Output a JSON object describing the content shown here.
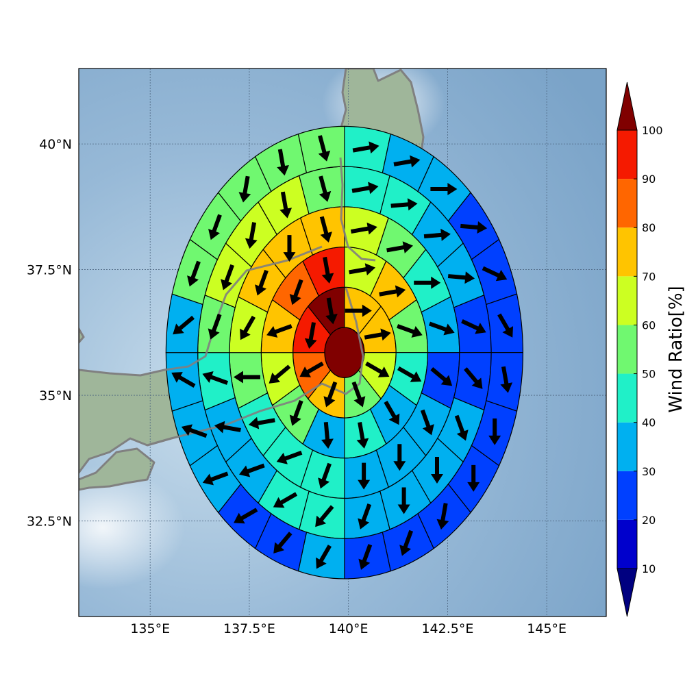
{
  "chart_data": {
    "type": "polar_sector_map",
    "title": "",
    "xlabel": "",
    "ylabel": "",
    "map": {
      "lon_range": [
        133.2,
        146.5
      ],
      "lat_range": [
        30.6,
        41.5
      ],
      "x_ticks": [
        135,
        137.5,
        140,
        142.5,
        145
      ],
      "x_tick_labels": [
        "135°E",
        "137.5°E",
        "140°E",
        "142.5°E",
        "145°E"
      ],
      "y_ticks": [
        32.5,
        35,
        37.5,
        40
      ],
      "y_tick_labels": [
        "32.5°N",
        "35°N",
        "37.5°N",
        "40°N"
      ],
      "grid": true,
      "ocean_color": "#8fb4d4",
      "coastline_color": "#808080",
      "land_color": "#9fb69a"
    },
    "center": {
      "lon": 139.9,
      "lat": 35.85
    },
    "rings": [
      {
        "ring": 0,
        "inner_deg": 0.0,
        "outer_deg": 0.5,
        "sectors": 1
      },
      {
        "ring": 1,
        "inner_deg": 0.5,
        "outer_deg": 1.3,
        "sectors": 8
      },
      {
        "ring": 2,
        "inner_deg": 1.3,
        "outer_deg": 2.1,
        "sectors": 12
      },
      {
        "ring": 3,
        "inner_deg": 2.1,
        "outer_deg": 2.9,
        "sectors": 16
      },
      {
        "ring": 4,
        "inner_deg": 2.9,
        "outer_deg": 3.7,
        "sectors": 20
      },
      {
        "ring": 5,
        "inner_deg": 3.7,
        "outer_deg": 4.5,
        "sectors": 24
      }
    ],
    "sector_order": "clockwise from north",
    "values": [
      [
        100
      ],
      [
        75,
        75,
        65,
        55,
        75,
        85,
        95,
        100
      ],
      [
        65,
        75,
        55,
        45,
        35,
        45,
        35,
        55,
        65,
        75,
        85,
        95
      ],
      [
        65,
        55,
        45,
        35,
        25,
        35,
        35,
        35,
        45,
        45,
        45,
        55,
        65,
        75,
        75,
        75
      ],
      [
        45,
        45,
        35,
        35,
        25,
        25,
        35,
        35,
        35,
        35,
        45,
        45,
        35,
        35,
        45,
        55,
        65,
        65,
        65,
        55
      ],
      [
        45,
        35,
        35,
        25,
        25,
        25,
        25,
        25,
        25,
        25,
        25,
        25,
        35,
        25,
        25,
        35,
        35,
        35,
        35,
        55,
        55,
        55,
        55,
        55
      ]
    ],
    "wind_direction_deg": [
      [
        null
      ],
      [
        90,
        80,
        120,
        160,
        200,
        240,
        190,
        170
      ],
      [
        80,
        80,
        110,
        120,
        150,
        170,
        175,
        200,
        230,
        250,
        200,
        170
      ],
      [
        80,
        80,
        90,
        110,
        130,
        160,
        180,
        180,
        200,
        250,
        260,
        270,
        210,
        200,
        180,
        165
      ],
      [
        80,
        85,
        85,
        95,
        115,
        140,
        160,
        180,
        180,
        200,
        220,
        240,
        250,
        280,
        290,
        200,
        200,
        190,
        170,
        165
      ],
      [
        80,
        80,
        90,
        95,
        115,
        150,
        170,
        180,
        180,
        190,
        200,
        200,
        210,
        220,
        240,
        250,
        290,
        300,
        230,
        200,
        200,
        190,
        170,
        165
      ]
    ],
    "colorbar": {
      "label": "Wind Ratio[%]",
      "bounds": [
        10,
        20,
        30,
        40,
        50,
        60,
        70,
        80,
        90,
        100
      ],
      "tick_labels": [
        "10",
        "20",
        "30",
        "40",
        "50",
        "60",
        "70",
        "80",
        "90",
        "100"
      ],
      "colors": [
        "#0000cc",
        "#0040ff",
        "#00b0f0",
        "#20f0c8",
        "#70f870",
        "#ccff22",
        "#ffc400",
        "#ff6600",
        "#f51a00"
      ],
      "under_color": "#000080",
      "over_color": "#800000"
    }
  }
}
